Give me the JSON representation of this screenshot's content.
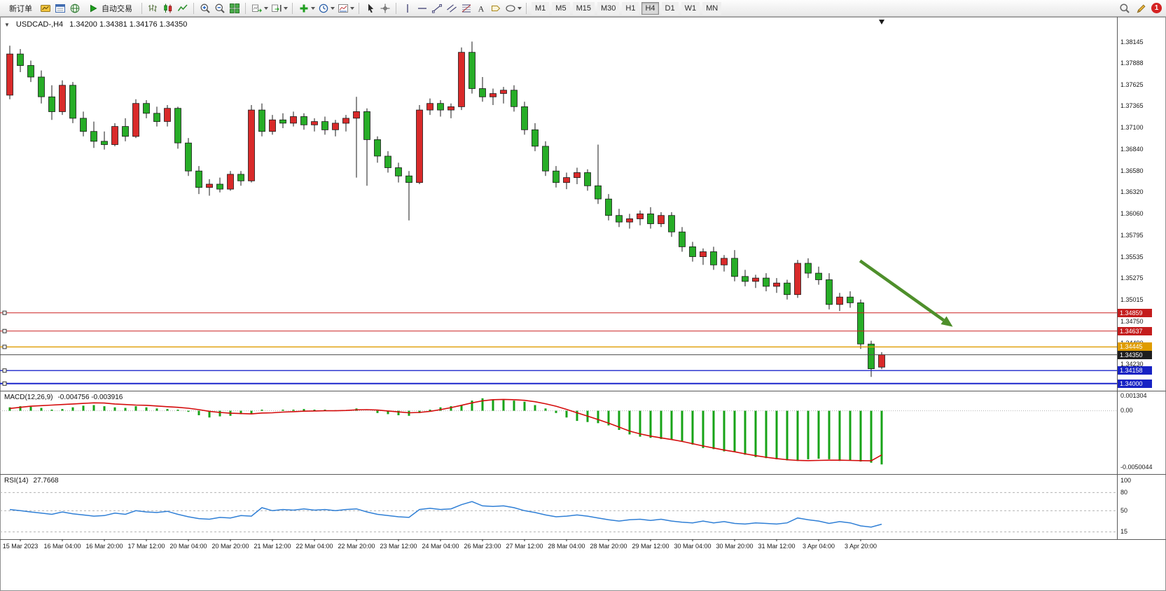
{
  "toolbar": {
    "new_order_label": "新订单",
    "auto_trading_label": "自动交易",
    "timeframes": [
      "M1",
      "M5",
      "M15",
      "M30",
      "H1",
      "H4",
      "D1",
      "W1",
      "MN"
    ],
    "active_timeframe": "H4",
    "notification_count": "1",
    "icon_names": [
      "profiles-icon",
      "market-watch-icon",
      "navigator-icon",
      "bar-chart-icon",
      "candlestick-chart-icon",
      "line-chart-icon",
      "zoom-in-icon",
      "zoom-out-icon",
      "tile-windows-icon",
      "auto-scroll-icon",
      "chart-shift-icon",
      "indicators-icon",
      "periods-icon",
      "templates-icon",
      "cursor-icon",
      "crosshair-icon",
      "vertical-line-icon",
      "horizontal-line-icon",
      "trendline-icon",
      "channel-icon",
      "fibonacci-icon",
      "text-icon",
      "label-icon",
      "shapes-icon",
      "search-icon",
      "edit-icon",
      "notifications-badge"
    ]
  },
  "chart_ui": {
    "one_click_glyph": "▼"
  },
  "chart_data": {
    "type": "candlestick",
    "symbol_title": "USDCAD-,H4",
    "ohlc_text": "1.34200 1.34381 1.34176 1.34350",
    "up_color": "#d92a2a",
    "down_color": "#27ad27",
    "wick_color": "#1a1a1a",
    "price_range": [
      1.3393,
      1.384
    ],
    "price_axis_labels": [
      1.38145,
      1.37888,
      1.37625,
      1.37365,
      1.371,
      1.3684,
      1.3658,
      1.3632,
      1.3606,
      1.35795,
      1.35535,
      1.35275,
      1.35015,
      1.3475,
      1.3449,
      1.3423
    ],
    "price_badges": [
      {
        "price": 1.34859,
        "color": "#c41d1d"
      },
      {
        "price": 1.34637,
        "color": "#c41d1d"
      },
      {
        "price": 1.34445,
        "color": "#df9c00"
      },
      {
        "price": 1.3435,
        "color": "#1f1f1f"
      },
      {
        "price": 1.34158,
        "color": "#1722c4"
      },
      {
        "price": 1.34,
        "color": "#1722c4"
      }
    ],
    "price_lines": [
      {
        "price": 1.34859,
        "color": "#cc2020",
        "width": 1,
        "handles": true
      },
      {
        "price": 1.34637,
        "color": "#cc2020",
        "width": 1,
        "handles": true
      },
      {
        "price": 1.34445,
        "color": "#df9c00",
        "width": 1.4,
        "handles": true
      },
      {
        "price": 1.3435,
        "color": "#4d4d4d",
        "width": 1,
        "handles": false
      },
      {
        "price": 1.34158,
        "color": "#1b26cc",
        "width": 1.4,
        "handles": true
      },
      {
        "price": 1.34,
        "color": "#1b26cc",
        "width": 2,
        "handles": true
      }
    ],
    "time_labels": [
      "15 Mar 2023",
      "16 Mar 04:00",
      "16 Mar 20:00",
      "17 Mar 12:00",
      "20 Mar 04:00",
      "20 Mar 20:00",
      "21 Mar 12:00",
      "22 Mar 04:00",
      "22 Mar 20:00",
      "23 Mar 12:00",
      "24 Mar 04:00",
      "26 Mar 23:00",
      "27 Mar 12:00",
      "28 Mar 04:00",
      "28 Mar 20:00",
      "29 Mar 12:00",
      "30 Mar 04:00",
      "30 Mar 20:00",
      "31 Mar 12:00",
      "3 Apr 04:00",
      "3 Apr 20:00"
    ],
    "candles": [
      [
        1.375,
        1.381,
        1.3745,
        1.38
      ],
      [
        1.38,
        1.3806,
        1.3778,
        1.3786
      ],
      [
        1.3786,
        1.3792,
        1.3766,
        1.3772
      ],
      [
        1.3772,
        1.378,
        1.374,
        1.3748
      ],
      [
        1.3748,
        1.3762,
        1.372,
        1.373
      ],
      [
        1.373,
        1.3768,
        1.3726,
        1.3762
      ],
      [
        1.3762,
        1.3766,
        1.3716,
        1.3722
      ],
      [
        1.3722,
        1.373,
        1.37,
        1.3706
      ],
      [
        1.3706,
        1.3718,
        1.3686,
        1.3694
      ],
      [
        1.3694,
        1.3706,
        1.3684,
        1.369
      ],
      [
        1.369,
        1.3716,
        1.3688,
        1.3712
      ],
      [
        1.3712,
        1.3722,
        1.3694,
        1.37
      ],
      [
        1.37,
        1.3745,
        1.3698,
        1.374
      ],
      [
        1.374,
        1.3744,
        1.3722,
        1.3728
      ],
      [
        1.3728,
        1.3736,
        1.3712,
        1.3718
      ],
      [
        1.3718,
        1.3738,
        1.3712,
        1.3734
      ],
      [
        1.3734,
        1.3736,
        1.3685,
        1.3692
      ],
      [
        1.3692,
        1.3698,
        1.3652,
        1.3658
      ],
      [
        1.3658,
        1.3664,
        1.363,
        1.3638
      ],
      [
        1.3638,
        1.3648,
        1.3628,
        1.3642
      ],
      [
        1.3642,
        1.365,
        1.3632,
        1.3636
      ],
      [
        1.3636,
        1.3658,
        1.3634,
        1.3654
      ],
      [
        1.3654,
        1.3658,
        1.364,
        1.3646
      ],
      [
        1.3646,
        1.3738,
        1.3644,
        1.3732
      ],
      [
        1.3732,
        1.374,
        1.37,
        1.3706
      ],
      [
        1.3706,
        1.3726,
        1.3702,
        1.372
      ],
      [
        1.372,
        1.3728,
        1.371,
        1.3716
      ],
      [
        1.3716,
        1.373,
        1.3712,
        1.3724
      ],
      [
        1.3724,
        1.3728,
        1.3708,
        1.3714
      ],
      [
        1.3714,
        1.3722,
        1.3706,
        1.3718
      ],
      [
        1.3718,
        1.3724,
        1.3702,
        1.3708
      ],
      [
        1.3708,
        1.372,
        1.37,
        1.3716
      ],
      [
        1.3716,
        1.3726,
        1.3706,
        1.3722
      ],
      [
        1.3722,
        1.3748,
        1.365,
        1.373
      ],
      [
        1.373,
        1.3734,
        1.364,
        1.3696
      ],
      [
        1.3696,
        1.37,
        1.3668,
        1.3676
      ],
      [
        1.3676,
        1.3682,
        1.3656,
        1.3662
      ],
      [
        1.3662,
        1.3668,
        1.3644,
        1.3652
      ],
      [
        1.3652,
        1.3658,
        1.3598,
        1.3644
      ],
      [
        1.3644,
        1.3738,
        1.3642,
        1.3732
      ],
      [
        1.3732,
        1.3746,
        1.3726,
        1.374
      ],
      [
        1.374,
        1.3744,
        1.3724,
        1.3732
      ],
      [
        1.3732,
        1.374,
        1.3722,
        1.3736
      ],
      [
        1.3736,
        1.3808,
        1.3732,
        1.3802
      ],
      [
        1.3802,
        1.3815,
        1.3752,
        1.3758
      ],
      [
        1.3758,
        1.3772,
        1.3742,
        1.3748
      ],
      [
        1.3748,
        1.3758,
        1.3738,
        1.3752
      ],
      [
        1.3752,
        1.376,
        1.374,
        1.3756
      ],
      [
        1.3756,
        1.3762,
        1.373,
        1.3736
      ],
      [
        1.3736,
        1.3742,
        1.3702,
        1.3708
      ],
      [
        1.3708,
        1.3716,
        1.3682,
        1.3688
      ],
      [
        1.3688,
        1.3694,
        1.3652,
        1.3658
      ],
      [
        1.3658,
        1.3664,
        1.3638,
        1.3644
      ],
      [
        1.3644,
        1.3656,
        1.3636,
        1.365
      ],
      [
        1.365,
        1.3662,
        1.3642,
        1.3656
      ],
      [
        1.3656,
        1.366,
        1.3634,
        1.364
      ],
      [
        1.364,
        1.369,
        1.3618,
        1.3624
      ],
      [
        1.3624,
        1.363,
        1.3598,
        1.3604
      ],
      [
        1.3604,
        1.3612,
        1.359,
        1.3596
      ],
      [
        1.3596,
        1.3606,
        1.3588,
        1.36
      ],
      [
        1.36,
        1.361,
        1.3592,
        1.3606
      ],
      [
        1.3606,
        1.3614,
        1.3588,
        1.3594
      ],
      [
        1.3594,
        1.3608,
        1.359,
        1.3604
      ],
      [
        1.3604,
        1.3608,
        1.3578,
        1.3584
      ],
      [
        1.3584,
        1.359,
        1.356,
        1.3566
      ],
      [
        1.3566,
        1.3572,
        1.3548,
        1.3554
      ],
      [
        1.3554,
        1.3564,
        1.3544,
        1.356
      ],
      [
        1.356,
        1.3566,
        1.3538,
        1.3544
      ],
      [
        1.3544,
        1.3556,
        1.3536,
        1.3552
      ],
      [
        1.3552,
        1.3562,
        1.3524,
        1.353
      ],
      [
        1.353,
        1.3538,
        1.3518,
        1.3524
      ],
      [
        1.3524,
        1.3532,
        1.3516,
        1.3528
      ],
      [
        1.3528,
        1.3534,
        1.3512,
        1.3518
      ],
      [
        1.3518,
        1.3528,
        1.351,
        1.3522
      ],
      [
        1.3522,
        1.3526,
        1.3502,
        1.3508
      ],
      [
        1.3508,
        1.355,
        1.3504,
        1.3546
      ],
      [
        1.3546,
        1.3552,
        1.3528,
        1.3534
      ],
      [
        1.3534,
        1.3542,
        1.352,
        1.3526
      ],
      [
        1.3526,
        1.3534,
        1.349,
        1.3496
      ],
      [
        1.3496,
        1.351,
        1.3488,
        1.3505
      ],
      [
        1.3505,
        1.3512,
        1.3492,
        1.3498
      ],
      [
        1.3498,
        1.3502,
        1.3442,
        1.3448
      ],
      [
        1.3448,
        1.3452,
        1.3408,
        1.3418
      ],
      [
        1.342,
        1.34381,
        1.34176,
        1.3435
      ]
    ],
    "annotation_arrow": {
      "color": "#4e8f2b",
      "x_frac_start": 0.77,
      "x_frac_end": 0.853,
      "price_start": 1.3549,
      "price_end": 1.3469
    },
    "indicators": [
      {
        "name": "MACD",
        "label": "MACD(12,26,9)",
        "values_text": "-0.004756 -0.003916",
        "histogram_color": "#17a317",
        "signal_color": "#d40b0b",
        "axis_labels": [
          "0.001304",
          "0.00",
          "-0.0050044"
        ],
        "axis_values": [
          0.001304,
          0,
          -0.0050044
        ],
        "range": [
          -0.0053,
          0.0014
        ],
        "histogram": [
          0.0003,
          0.0004,
          0.00035,
          0.00025,
          0.0001,
          0.00015,
          0.0003,
          0.00045,
          0.0005,
          0.0004,
          0.0003,
          0.00025,
          0.0004,
          0.0003,
          0.0002,
          0.00015,
          0.0001,
          -0.0001,
          -0.0004,
          -0.0006,
          -0.0005,
          -0.00045,
          -0.0003,
          -0.0003,
          0.0001,
          0.0,
          0.0001,
          0.0001,
          0.00015,
          0.0001,
          0.0001,
          5e-05,
          5e-05,
          0.0002,
          0.0,
          -0.0002,
          -0.0003,
          -0.0004,
          -0.00045,
          -0.0002,
          0.0001,
          0.0003,
          0.0004,
          0.0005,
          0.0009,
          0.0011,
          0.001,
          0.00095,
          0.0009,
          0.0008,
          0.0005,
          0.0002,
          -0.0002,
          -0.0006,
          -0.0009,
          -0.001,
          -0.0011,
          -0.0013,
          -0.0017,
          -0.0021,
          -0.0023,
          -0.0024,
          -0.0025,
          -0.00255,
          -0.0027,
          -0.003,
          -0.0033,
          -0.0034,
          -0.0036,
          -0.00365,
          -0.0039,
          -0.0041,
          -0.0042,
          -0.0043,
          -0.0044,
          -0.00445,
          -0.0043,
          -0.00425,
          -0.0043,
          -0.00445,
          -0.0044,
          -0.0045,
          -0.0046,
          -0.004756
        ],
        "signal": [
          0.0002,
          0.0003,
          0.0004,
          0.00045,
          0.0005,
          0.00055,
          0.0006,
          0.00065,
          0.0007,
          0.00068,
          0.0006,
          0.00055,
          0.0005,
          0.00048,
          0.00042,
          0.00036,
          0.0003,
          0.00022,
          0.0001,
          -5e-05,
          -0.00015,
          -0.00022,
          -0.00025,
          -0.00028,
          -0.0002,
          -0.00018,
          -0.00012,
          -8e-05,
          -4e-05,
          -2e-05,
          0.0,
          0.0,
          2e-05,
          8e-05,
          0.0001,
          6e-05,
          -2e-05,
          -0.0001,
          -0.00018,
          -0.00015,
          -5e-05,
          0.0001,
          0.00028,
          0.00048,
          0.0007,
          0.00088,
          0.00098,
          0.001,
          0.00098,
          0.00092,
          0.0008,
          0.00062,
          0.0004,
          0.00012,
          -0.00018,
          -0.00048,
          -0.00078,
          -0.0011,
          -0.00145,
          -0.0018,
          -0.00205,
          -0.00225,
          -0.0024,
          -0.00255,
          -0.00272,
          -0.00292,
          -0.00312,
          -0.0033,
          -0.00348,
          -0.00364,
          -0.00382,
          -0.00398,
          -0.00412,
          -0.00424,
          -0.00434,
          -0.0044,
          -0.00442,
          -0.0044,
          -0.00438,
          -0.00438,
          -0.0044,
          -0.00442,
          -0.00444,
          -0.003916
        ]
      },
      {
        "name": "RSI",
        "label": "RSI(14)",
        "value_text": "27.7668",
        "line_color": "#2f7fd6",
        "axis_labels": [
          "100",
          "80",
          "50",
          "15"
        ],
        "axis_values": [
          100,
          80,
          50,
          15
        ],
        "levels": [
          80,
          50,
          15
        ],
        "range": [
          10,
          100
        ],
        "values": [
          52,
          50,
          48,
          46,
          44,
          48,
          45,
          43,
          41,
          42,
          46,
          44,
          50,
          48,
          47,
          49,
          44,
          40,
          37,
          36,
          39,
          38,
          42,
          41,
          55,
          50,
          52,
          51,
          53,
          51,
          52,
          50,
          52,
          53,
          48,
          44,
          42,
          40,
          39,
          52,
          54,
          52,
          53,
          60,
          65,
          58,
          57,
          58,
          55,
          50,
          47,
          43,
          40,
          41,
          43,
          41,
          38,
          35,
          33,
          35,
          36,
          34,
          36,
          33,
          31,
          30,
          33,
          30,
          32,
          29,
          28,
          30,
          29,
          28,
          30,
          38,
          35,
          33,
          29,
          32,
          30,
          25,
          23,
          27.7668
        ]
      }
    ]
  }
}
